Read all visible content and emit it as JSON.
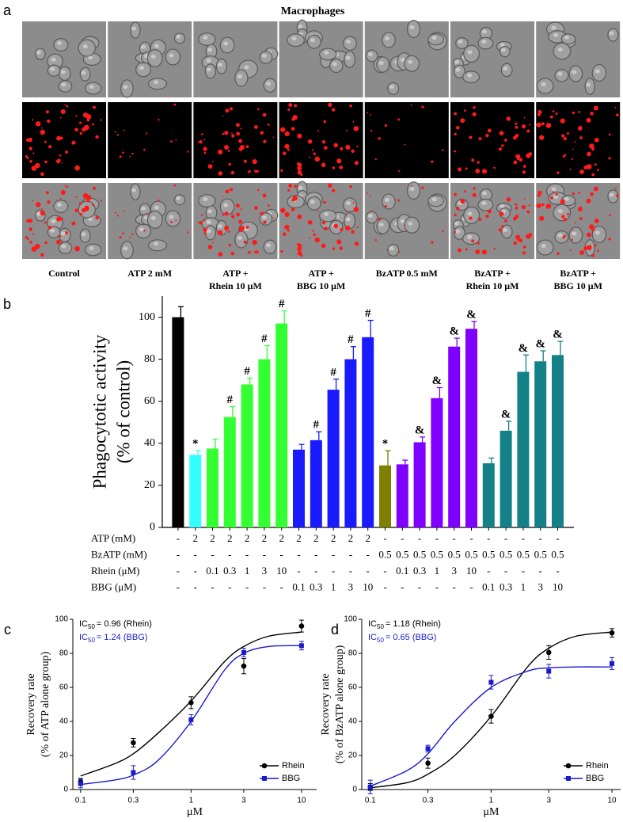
{
  "panel_a": {
    "label": "a",
    "title": "Macrophages",
    "column_labels": [
      [
        "Control"
      ],
      [
        "ATP 2 mM"
      ],
      [
        "ATP +",
        "Rhein 10 μM"
      ],
      [
        "ATP +",
        "BBG 10 μM"
      ],
      [
        "BzATP 0.5 mM"
      ],
      [
        "BzATP +",
        "Rhein 10 μM"
      ],
      [
        "BzATP +",
        "BBG 10 μM"
      ]
    ]
  },
  "chart_data": [
    {
      "type": "bar",
      "label": "b",
      "y_label": [
        "Phagocytotic activity",
        "(% of control)"
      ],
      "values": [
        100,
        34.5,
        37.5,
        52.5,
        68,
        80,
        97,
        37,
        41.5,
        65.5,
        80,
        90.5,
        29.5,
        30,
        40.5,
        61.5,
        86,
        94.5,
        30.5,
        46,
        74,
        79,
        82
      ],
      "errors": [
        5,
        2,
        4.5,
        5,
        3,
        6.5,
        6,
        2.5,
        4,
        5,
        6,
        8,
        7,
        2,
        2.5,
        5,
        4,
        3.5,
        2.5,
        4.5,
        8,
        5,
        6.5
      ],
      "colors": [
        "#000000",
        "#33ffff",
        "#33ff33",
        "#33ff33",
        "#33ff33",
        "#33ff33",
        "#33ff33",
        "#1a1aff",
        "#1a1aff",
        "#1a1aff",
        "#1a1aff",
        "#1a1aff",
        "#808000",
        "#8000ff",
        "#8000ff",
        "#8000ff",
        "#8000ff",
        "#8000ff",
        "#148088",
        "#148088",
        "#148088",
        "#148088",
        "#148088"
      ],
      "markers": [
        null,
        "*",
        null,
        "#",
        "#",
        "#",
        "#",
        null,
        "#",
        "#",
        "#",
        "#",
        "*",
        null,
        "&",
        "&",
        "&",
        "&",
        null,
        "&",
        "&",
        "&",
        "&"
      ],
      "ylim": [
        0,
        110
      ],
      "yticks": [
        0,
        20,
        40,
        60,
        80,
        100
      ],
      "table": {
        "row_labels": [
          "ATP (mM)",
          "BzATP (mM)",
          "Rhein (μM)",
          "BBG (μM)"
        ],
        "rows": [
          [
            "-",
            "2",
            "2",
            "2",
            "2",
            "2",
            "2",
            "2",
            "2",
            "2",
            "2",
            "2",
            "-",
            "-",
            "-",
            "-",
            "-",
            "-",
            "-",
            "-",
            "-",
            "-",
            "-"
          ],
          [
            "-",
            "-",
            "-",
            "-",
            "-",
            "-",
            "-",
            "-",
            "-",
            "-",
            "-",
            "-",
            "0.5",
            "0.5",
            "0.5",
            "0.5",
            "0.5",
            "0.5",
            "0.5",
            "0.5",
            "0.5",
            "0.5",
            "0.5"
          ],
          [
            "-",
            "-",
            "0.1",
            "0.3",
            "1",
            "3",
            "10",
            "-",
            "-",
            "-",
            "-",
            "-",
            "-",
            "0.1",
            "0.3",
            "1",
            "3",
            "10",
            "-",
            "-",
            "-",
            "-",
            "-"
          ],
          [
            "-",
            "-",
            "-",
            "-",
            "-",
            "-",
            "-",
            "0.1",
            "0.3",
            "1",
            "3",
            "10",
            "-",
            "-",
            "-",
            "-",
            "-",
            "-",
            "0.1",
            "0.3",
            "1",
            "3",
            "10"
          ]
        ]
      }
    },
    {
      "type": "scatter",
      "label": "c",
      "y_label": [
        "Recovery rate",
        "(% of ATP alone group)"
      ],
      "x_label": "μM",
      "log_x": true,
      "xlim": [
        0.085,
        13.7
      ],
      "xticks": [
        0.1,
        0.3,
        1,
        3,
        10
      ],
      "ylim": [
        0,
        100
      ],
      "yticks": [
        0,
        20,
        40,
        60,
        80,
        100
      ],
      "legend": "lower right",
      "annotations": [
        {
          "text": "IC",
          "sub": "50",
          "rest": "= 0.96 (Rhein)",
          "color": "#000000"
        },
        {
          "text": "IC",
          "sub": "50",
          "rest": "= 1.24 (BBG)",
          "color": "#1a1acc"
        }
      ],
      "series": [
        {
          "name": "Rhein",
          "color": "#000000",
          "marker": "circle",
          "x": [
            0.1,
            0.3,
            1,
            3,
            10
          ],
          "values": [
            4.5,
            27.5,
            51,
            72.5,
            96
          ],
          "errors": [
            2,
            2.5,
            3.5,
            4.5,
            3.5
          ],
          "fit_x": [
            0.1,
            0.2,
            0.3,
            0.5,
            1,
            2,
            3,
            5,
            10
          ],
          "fit_values": [
            8,
            15,
            21,
            33,
            52,
            75,
            84,
            90,
            92.5
          ]
        },
        {
          "name": "BBG",
          "color": "#1a1acc",
          "marker": "square",
          "x": [
            0.1,
            0.3,
            1,
            3,
            10
          ],
          "values": [
            3.5,
            10,
            41,
            80.5,
            84.5
          ],
          "errors": [
            2.5,
            4,
            3,
            2.5,
            2.5
          ],
          "fit_x": [
            0.1,
            0.2,
            0.3,
            0.5,
            1,
            2,
            3,
            5,
            10
          ],
          "fit_values": [
            3,
            5.5,
            8.5,
            17,
            40,
            70,
            80,
            84,
            84.5
          ]
        }
      ]
    },
    {
      "type": "scatter",
      "label": "d",
      "y_label": [
        "Recovery rate",
        "(% of BzATP alone group)"
      ],
      "x_label": "μM",
      "log_x": true,
      "xlim": [
        0.085,
        11.8
      ],
      "xticks": [
        0.1,
        0.3,
        1,
        3,
        10
      ],
      "ylim": [
        0,
        100
      ],
      "yticks": [
        0,
        20,
        40,
        60,
        80,
        100
      ],
      "legend": "lower right",
      "annotations": [
        {
          "text": "IC",
          "sub": "50",
          "rest": "= 1.18 (Rhein)",
          "color": "#000000"
        },
        {
          "text": "IC",
          "sub": "50",
          "rest": "= 0.65 (BBG)",
          "color": "#1a1acc"
        }
      ],
      "series": [
        {
          "name": "Rhein",
          "color": "#000000",
          "marker": "circle",
          "x": [
            0.1,
            0.3,
            1,
            3,
            10
          ],
          "values": [
            1.5,
            15.5,
            43,
            80.5,
            92
          ],
          "errors": [
            2,
            3,
            4,
            4,
            2.5
          ],
          "fit_x": [
            0.1,
            0.2,
            0.3,
            0.5,
            1,
            2,
            3,
            5,
            10
          ],
          "fit_values": [
            1,
            4,
            9,
            20,
            43,
            72,
            83,
            90,
            92.5
          ]
        },
        {
          "name": "BBG",
          "color": "#1a1acc",
          "marker": "square",
          "x": [
            0.1,
            0.3,
            1,
            3,
            10
          ],
          "values": [
            1.5,
            24,
            63,
            69.5,
            74
          ],
          "errors": [
            4,
            2,
            4,
            4,
            3.5
          ],
          "fit_x": [
            0.1,
            0.2,
            0.3,
            0.5,
            1,
            2,
            3,
            5,
            10
          ],
          "fit_values": [
            2,
            11,
            21,
            40,
            60,
            69.5,
            71.5,
            72,
            72
          ]
        }
      ]
    }
  ]
}
